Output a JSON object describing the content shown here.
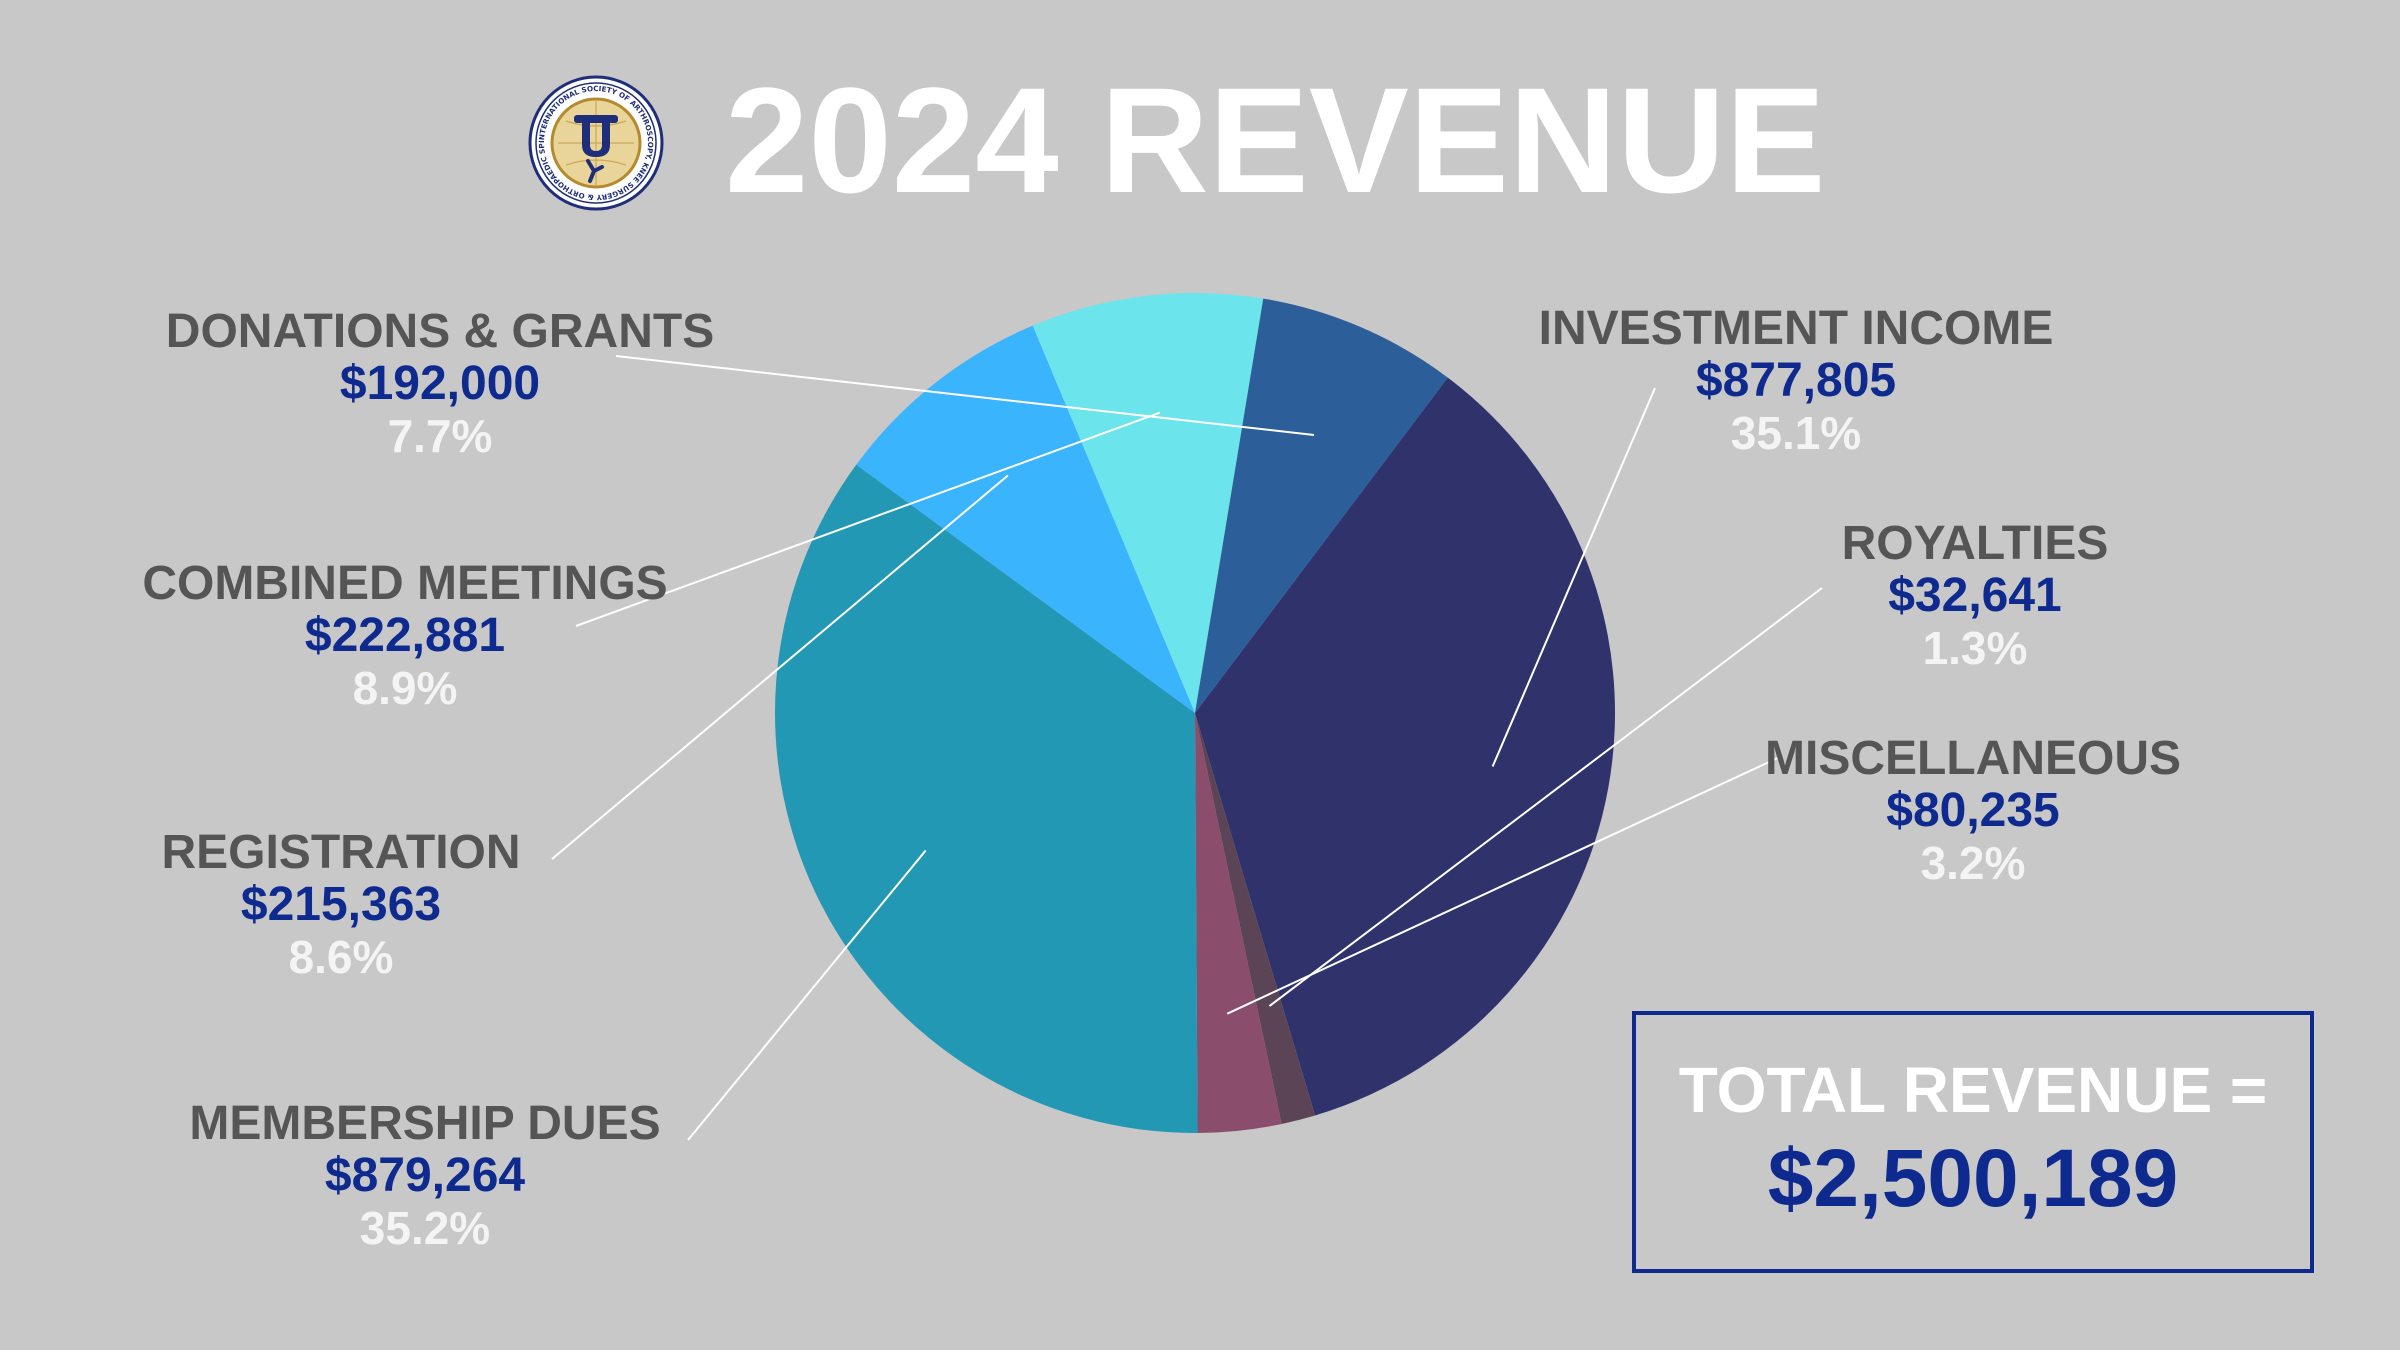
{
  "header": {
    "title": "2024 REVENUE",
    "logo_icon": "society-seal-logo"
  },
  "logo": {
    "ring_text": "INTERNATIONAL SOCIETY OF ARTHROSCOPY, KNEE SURGERY & ORTHOPAEDIC SPORTS MEDICINE • 1995 •"
  },
  "chart_data": {
    "type": "pie",
    "slices": [
      {
        "name": "INVESTMENT INCOME",
        "amount": "$877,805",
        "value": 877805,
        "percent": "35.1%",
        "color": "#30336b"
      },
      {
        "name": "ROYALTIES",
        "amount": "$32,641",
        "value": 32641,
        "percent": "1.3%",
        "color": "#5b4456"
      },
      {
        "name": "MISCELLANEOUS",
        "amount": "$80,235",
        "value": 80235,
        "percent": "3.2%",
        "color": "#8a4d6c"
      },
      {
        "name": "MEMBERSHIP DUES",
        "amount": "$879,264",
        "value": 879264,
        "percent": "35.2%",
        "color": "#2398b4"
      },
      {
        "name": "REGISTRATION",
        "amount": "$215,363",
        "value": 215363,
        "percent": "8.6%",
        "color": "#3ab4fd"
      },
      {
        "name": "COMBINED MEETINGS",
        "amount": "$222,881",
        "value": 222881,
        "percent": "8.9%",
        "color": "#6be4ec"
      },
      {
        "name": "DONATIONS & GRANTS",
        "amount": "$192,000",
        "value": 192000,
        "percent": "7.7%",
        "color": "#2c5f99"
      }
    ]
  },
  "total": {
    "label": "TOTAL REVENUE =",
    "value": "$2,500,189"
  }
}
